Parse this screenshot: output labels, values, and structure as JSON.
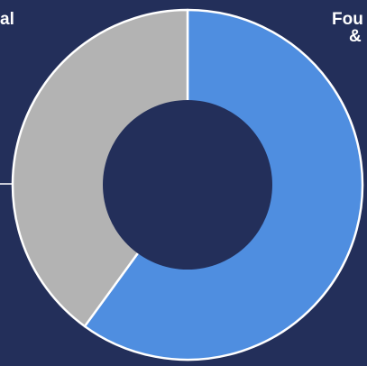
{
  "chart_data": {
    "type": "pie",
    "variant": "donut",
    "slices": [
      {
        "label": "Fou\n&",
        "value": 60,
        "color": "#4f8ee0"
      },
      {
        "label": "al",
        "value": 40,
        "color": "#b3b3b3"
      }
    ],
    "background": "#232f5a",
    "hole_color": "#232f5a",
    "edge_color": "#ffffff",
    "start": "top",
    "direction": "clockwise"
  },
  "labels": {
    "right_line1": "Fou",
    "right_line2": "&",
    "left": "al"
  }
}
